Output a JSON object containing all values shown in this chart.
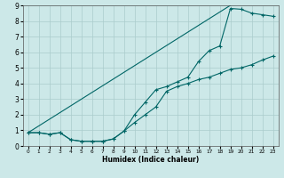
{
  "xlabel": "Humidex (Indice chaleur)",
  "xlim": [
    -0.5,
    23.5
  ],
  "ylim": [
    0,
    9
  ],
  "xticks": [
    0,
    1,
    2,
    3,
    4,
    5,
    6,
    7,
    8,
    9,
    10,
    11,
    12,
    13,
    14,
    15,
    16,
    17,
    18,
    19,
    20,
    21,
    22,
    23
  ],
  "yticks": [
    0,
    1,
    2,
    3,
    4,
    5,
    6,
    7,
    8,
    9
  ],
  "bg_color": "#cce8e8",
  "grid_color": "#aacccc",
  "line_color": "#006666",
  "line1_x": [
    0,
    1,
    2,
    3,
    4,
    5,
    6,
    7,
    8,
    9,
    10,
    11,
    12,
    13,
    14,
    15,
    16,
    17,
    18,
    19,
    20,
    21,
    22,
    23
  ],
  "line1_y": [
    0.85,
    0.85,
    0.75,
    0.85,
    0.4,
    0.3,
    0.3,
    0.3,
    0.45,
    0.95,
    1.5,
    2.0,
    2.5,
    3.5,
    3.8,
    4.0,
    4.25,
    4.4,
    4.65,
    4.9,
    5.0,
    5.2,
    5.5,
    5.75
  ],
  "line2_x": [
    0,
    1,
    2,
    3,
    4,
    5,
    6,
    7,
    8,
    9,
    10,
    11,
    12,
    13,
    14,
    15,
    16,
    17,
    18,
    19,
    20,
    21,
    22,
    23
  ],
  "line2_y": [
    0.85,
    0.85,
    0.75,
    0.85,
    0.4,
    0.3,
    0.3,
    0.3,
    0.45,
    0.95,
    2.0,
    2.8,
    3.6,
    3.8,
    4.1,
    4.4,
    5.4,
    6.1,
    6.4,
    8.8,
    8.75,
    8.5,
    8.4,
    8.3
  ],
  "line3_x": [
    0,
    19
  ],
  "line3_y": [
    0.85,
    9.0
  ]
}
